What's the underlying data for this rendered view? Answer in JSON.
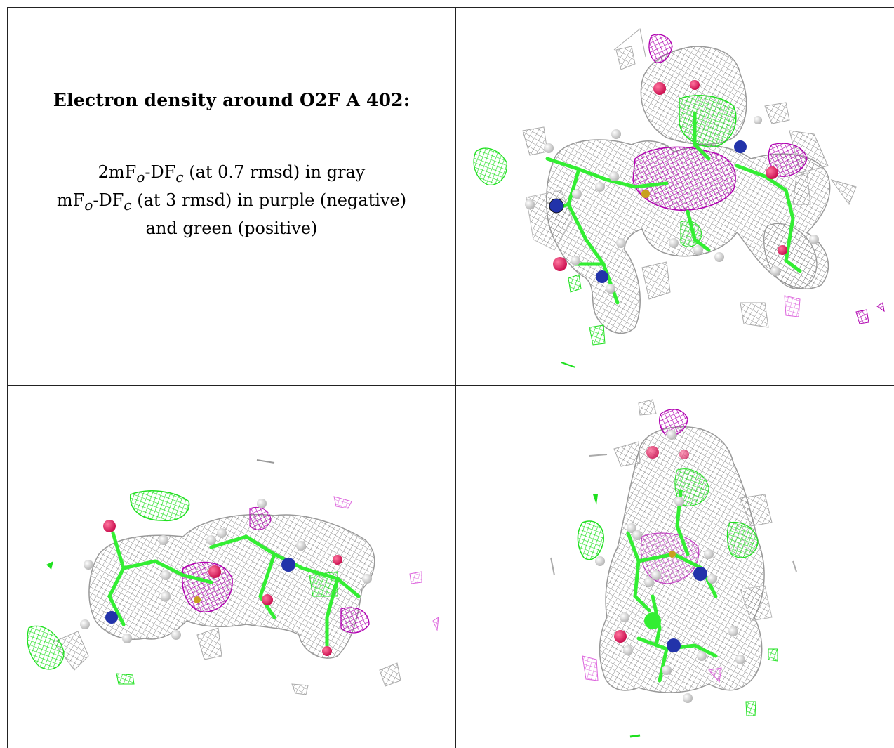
{
  "caption": {
    "title": "Electron density around O2F A 402:",
    "line1_pre": "2mF",
    "line1_sub1": "o",
    "line1_mid": "-DF",
    "line1_sub2": "c",
    "line1_post": " (at 0.7 rmsd) in gray",
    "line2_pre": "mF",
    "line2_sub1": "o",
    "line2_mid": "-DF",
    "line2_sub2": "c",
    "line2_post": " (at 3 rmsd) in purple (negative)",
    "line3": "and green (positive)"
  },
  "colors": {
    "mesh_gray": "#9a9a9a",
    "mesh_green": "#22ee22",
    "mesh_purple": "#bb00bb",
    "stick_green": "#33ff33",
    "hydrogen": "#e8e8e8",
    "oxygen": "#ee2266",
    "nitrogen": "#2233aa",
    "border": "#222222"
  },
  "panels": [
    {
      "name": "view-top-right"
    },
    {
      "name": "view-bottom-left"
    },
    {
      "name": "view-bottom-right"
    }
  ]
}
